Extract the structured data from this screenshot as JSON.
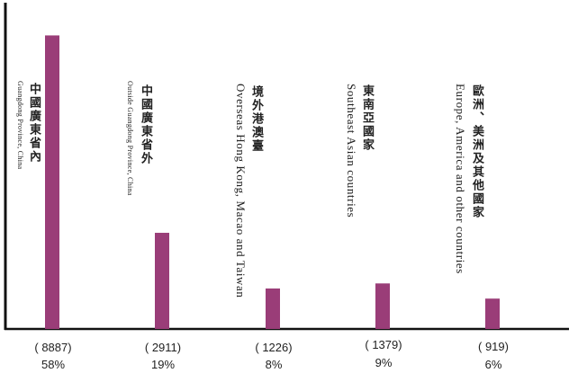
{
  "chart_data": {
    "type": "bar",
    "bar_color": "#9a3d78",
    "axis_color": "#111111",
    "categories": [
      {
        "zh": "中國廣東省內",
        "en": "Guangdong Province, China",
        "count": "( 8887)",
        "pct": "58%",
        "value": 58
      },
      {
        "zh": "中國廣東省外",
        "en": "Outside Guangdong Province, China",
        "count": "( 2911)",
        "pct": "19%",
        "value": 19
      },
      {
        "zh": "境外港澳臺",
        "en": "Overseas Hong Kong, Macao and Taiwan",
        "count": "( 1226)",
        "pct": "8%",
        "value": 8
      },
      {
        "zh": "東南亞國家",
        "en": "Southeast Asian countries",
        "count": "( 1379)",
        "pct": "9%",
        "value": 9
      },
      {
        "zh": "歐洲、美洲及其他國家",
        "en": "Europe, America and other countries",
        "count": "( 919)",
        "pct": "6%",
        "value": 6
      }
    ],
    "ylim": [
      0,
      65
    ]
  }
}
